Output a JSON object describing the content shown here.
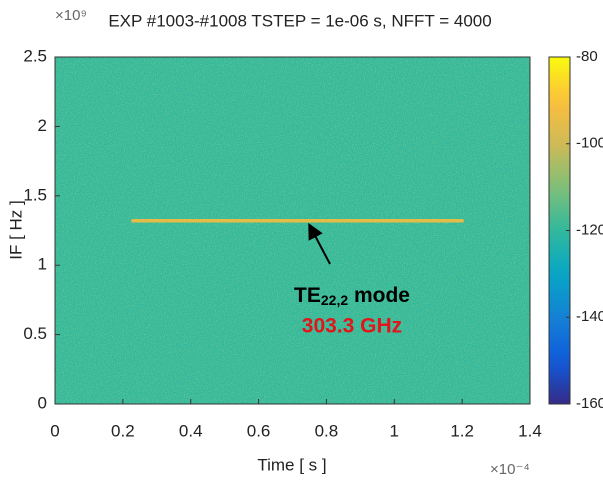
{
  "chart_data": {
    "type": "spectrogram",
    "title": "EXP  #1003-#1008  TSTEP = 1e-06 s,   NFFT = 4000",
    "x_label": "Time [ s ]",
    "y_label": "IF [ Hz ]",
    "x_exponent": "×10⁻⁴",
    "y_exponent": "×10⁹",
    "xlim": [
      0,
      1.4
    ],
    "xticks": [
      0,
      0.2,
      0.4,
      0.6,
      0.8,
      1,
      1.2,
      1.4
    ],
    "ylim": [
      0,
      2.5
    ],
    "yticks": [
      0,
      0.5,
      1,
      1.5,
      2,
      2.5
    ],
    "clim": [
      -160,
      -80
    ],
    "cticks": [
      -160,
      -140,
      -120,
      -100,
      -80
    ],
    "noise_level": -120,
    "signal": {
      "x": [
        0.23,
        1.2
      ],
      "y": 1.32,
      "level": -95
    },
    "annotation": {
      "label": "TE",
      "subscript": "22,2",
      "suffix": " mode",
      "frequency": "303.3 GHz"
    }
  }
}
